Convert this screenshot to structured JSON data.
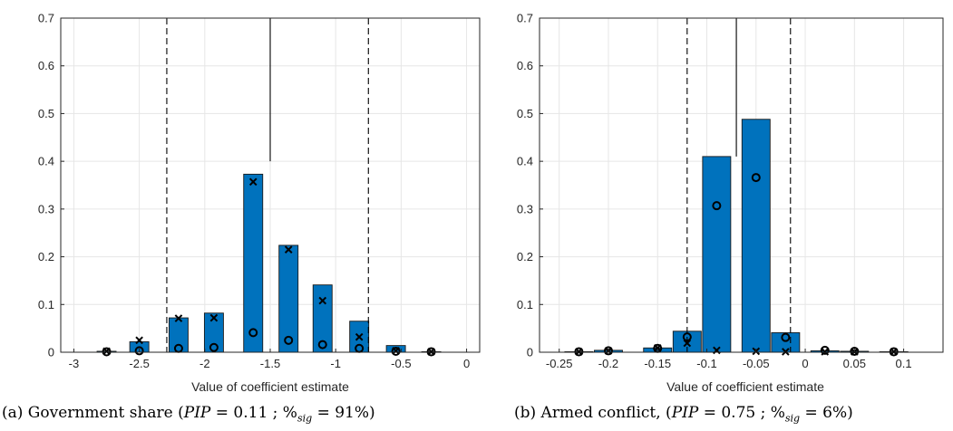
{
  "chart_data": [
    {
      "type": "bar",
      "x": [
        -2.75,
        -2.5,
        -2.2,
        -1.93,
        -1.63,
        -1.36,
        -1.1,
        -0.82,
        -0.54,
        -0.27
      ],
      "values": [
        0.002,
        0.022,
        0.072,
        0.082,
        0.373,
        0.224,
        0.141,
        0.065,
        0.014,
        0.001
      ],
      "series": [
        {
          "marker": "x",
          "values": [
            0.002,
            0.025,
            0.071,
            0.072,
            0.357,
            0.215,
            0.108,
            0.032,
            0.003,
            0.001
          ]
        },
        {
          "marker": "o",
          "values": [
            0.001,
            0.003,
            0.008,
            0.01,
            0.041,
            0.025,
            0.016,
            0.008,
            0.002,
            0.001
          ]
        }
      ],
      "vlines": [
        {
          "x": -2.29,
          "style": "dashed"
        },
        {
          "x": -1.5,
          "style": "solid",
          "ymax": 0.7,
          "ymin": 0.4
        },
        {
          "x": -0.75,
          "style": "dashed"
        }
      ],
      "xlim": [
        -3.1,
        0.1
      ],
      "ylim": [
        0,
        0.7
      ],
      "xticks": [
        -3,
        -2.5,
        -2,
        -1.5,
        -1,
        -0.5,
        0
      ],
      "xtick_labels": [
        "-3",
        "-2.5",
        "-2",
        "-1.5",
        "-1",
        "-0.5",
        "0"
      ],
      "yticks": [
        0,
        0.1,
        0.2,
        0.3,
        0.4,
        0.5,
        0.6,
        0.7
      ],
      "ytick_labels": [
        "0",
        "0.1",
        "0.2",
        "0.3",
        "0.4",
        "0.5",
        "0.6",
        "0.7"
      ],
      "xlabel": "Value of coefficient estimate",
      "grid": true,
      "colors": {
        "bar": "#0072BD",
        "edge": "#1a1a1a"
      },
      "caption": {
        "prefix": "(a) Government share (",
        "pip": "PIP",
        "pip_value": " = 0.11 ; %",
        "sig": "sig",
        "sig_value": " = 91%)"
      }
    },
    {
      "type": "bar",
      "x": [
        -0.23,
        -0.2,
        -0.15,
        -0.12,
        -0.09,
        -0.05,
        -0.02,
        0.02,
        0.05,
        0.09
      ],
      "values": [
        0.001,
        0.004,
        0.009,
        0.044,
        0.41,
        0.488,
        0.041,
        0.003,
        0.002,
        0.001
      ],
      "series": [
        {
          "marker": "o",
          "values": [
            0.001,
            0.003,
            0.008,
            0.032,
            0.307,
            0.366,
            0.031,
            0.004,
            0.002,
            0.001
          ]
        },
        {
          "marker": "x",
          "values": [
            0.001,
            0.003,
            0.009,
            0.019,
            0.004,
            0.002,
            0.001,
            0.001,
            0.001,
            0.001
          ]
        }
      ],
      "vlines": [
        {
          "x": -0.12,
          "style": "dashed"
        },
        {
          "x": -0.07,
          "style": "solid",
          "ymax": 0.7,
          "ymin": 0.41
        },
        {
          "x": -0.015,
          "style": "dashed"
        }
      ],
      "xlim": [
        -0.27,
        0.14
      ],
      "ylim": [
        0,
        0.7
      ],
      "xticks": [
        -0.25,
        -0.2,
        -0.15,
        -0.1,
        -0.05,
        0,
        0.05,
        0.1
      ],
      "xtick_labels": [
        "-0.25",
        "-0.2",
        "-0.15",
        "-0.1",
        "-0.05",
        "0",
        "0.05",
        "0.1"
      ],
      "yticks": [
        0,
        0.1,
        0.2,
        0.3,
        0.4,
        0.5,
        0.6,
        0.7
      ],
      "ytick_labels": [
        "0",
        "0.1",
        "0.2",
        "0.3",
        "0.4",
        "0.5",
        "0.6",
        "0.7"
      ],
      "xlabel": "Value of coefficient estimate",
      "grid": true,
      "colors": {
        "bar": "#0072BD",
        "edge": "#1a1a1a"
      },
      "caption": {
        "prefix": "(b) Armed conflict, (",
        "pip": "PIP",
        "pip_value": " = 0.75 ; %",
        "sig": "sig",
        "sig_value": " = 6%)"
      }
    }
  ]
}
